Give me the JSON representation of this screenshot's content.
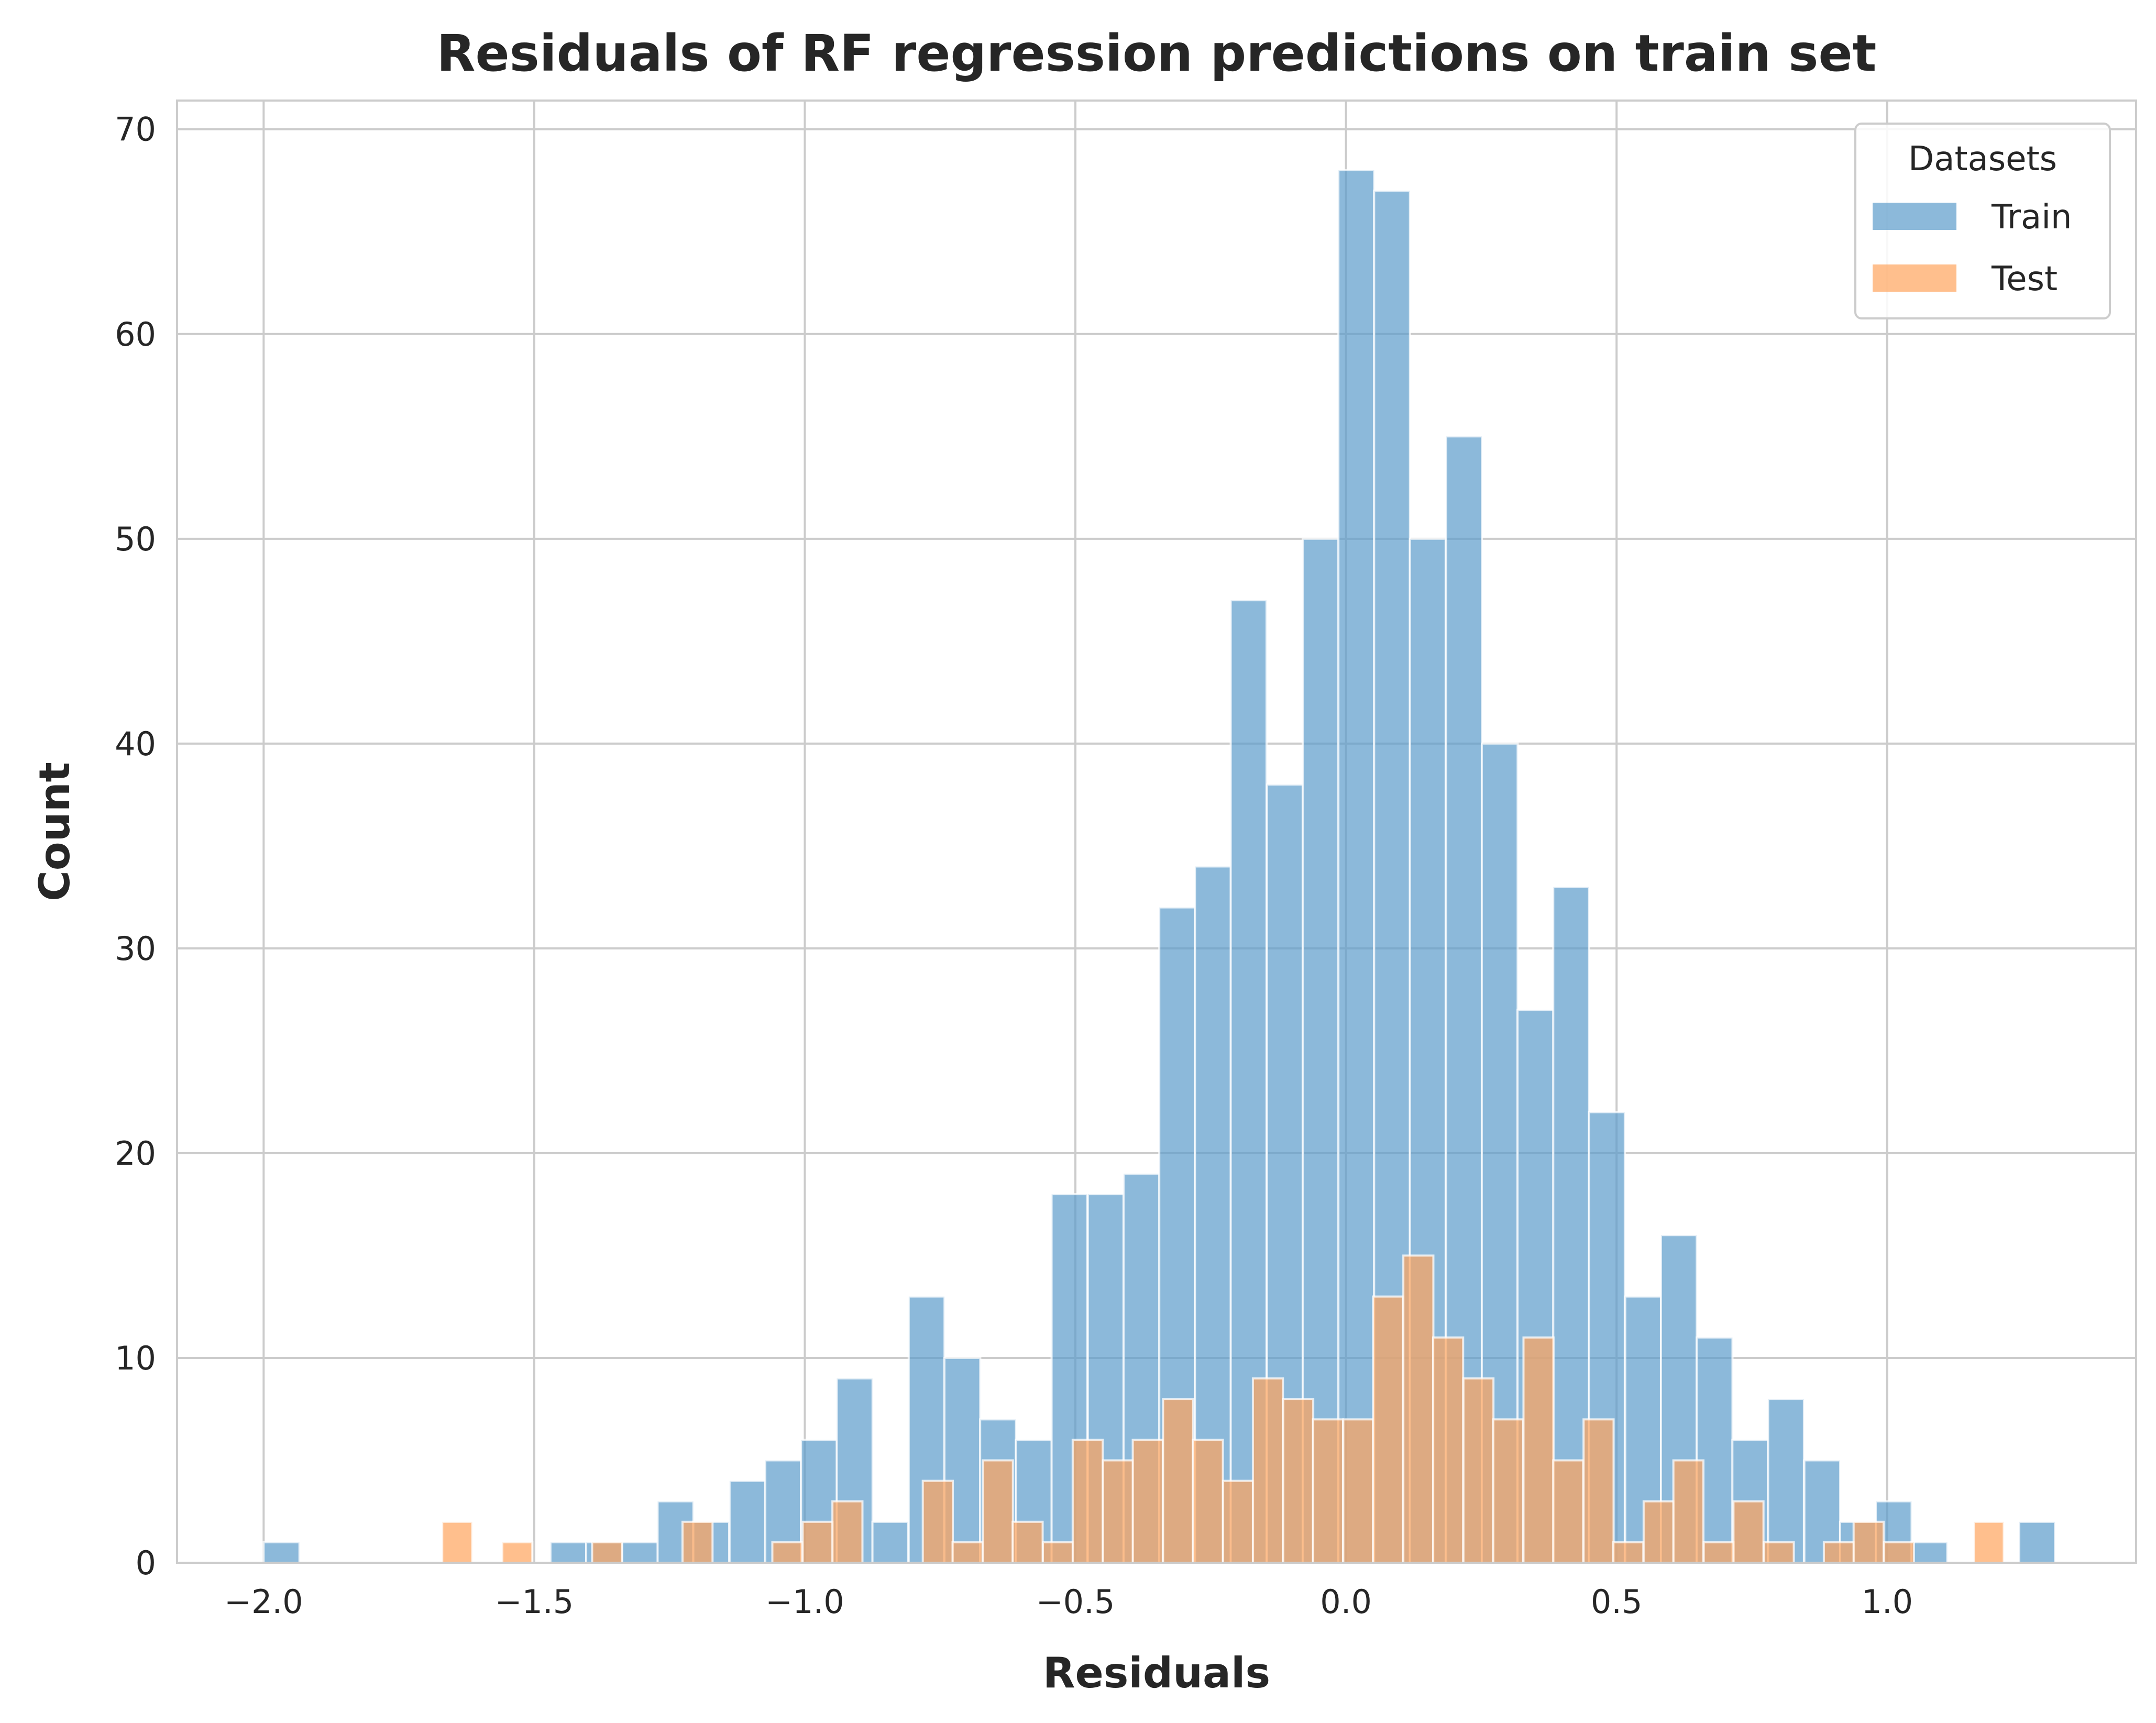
{
  "chart_data": {
    "type": "bar",
    "title": "Residuals of RF regression predictions on train set",
    "xlabel": "Residuals",
    "ylabel": "Count",
    "xlim": [
      -2.16,
      1.46
    ],
    "ylim": [
      0,
      71.4
    ],
    "x_ticks": [
      -2.0,
      -1.5,
      -1.0,
      -0.5,
      0.0,
      0.5,
      1.0
    ],
    "x_tick_labels": [
      "−2.0",
      "−1.5",
      "−1.0",
      "−0.5",
      "0.0",
      "0.5",
      "1.0"
    ],
    "y_ticks": [
      0,
      10,
      20,
      30,
      40,
      50,
      60,
      70
    ],
    "y_tick_labels": [
      "0",
      "10",
      "20",
      "30",
      "40",
      "50",
      "60",
      "70"
    ],
    "grid": true,
    "legend": {
      "title": "Datasets",
      "placement": "top-right"
    },
    "series": [
      {
        "name": "Train",
        "color": "#5b9bcb",
        "bin_width": 0.0662,
        "bins": [
          {
            "x0": -2.0,
            "count": 1
          },
          {
            "x0": -1.934,
            "count": 0
          },
          {
            "x0": -1.868,
            "count": 0
          },
          {
            "x0": -1.801,
            "count": 0
          },
          {
            "x0": -1.735,
            "count": 0
          },
          {
            "x0": -1.669,
            "count": 0
          },
          {
            "x0": -1.603,
            "count": 0
          },
          {
            "x0": -1.537,
            "count": 0
          },
          {
            "x0": -1.47,
            "count": 1
          },
          {
            "x0": -1.404,
            "count": 1
          },
          {
            "x0": -1.338,
            "count": 1
          },
          {
            "x0": -1.272,
            "count": 3
          },
          {
            "x0": -1.206,
            "count": 2
          },
          {
            "x0": -1.139,
            "count": 4
          },
          {
            "x0": -1.073,
            "count": 5
          },
          {
            "x0": -1.007,
            "count": 6
          },
          {
            "x0": -0.941,
            "count": 9
          },
          {
            "x0": -0.875,
            "count": 2
          },
          {
            "x0": -0.808,
            "count": 13
          },
          {
            "x0": -0.742,
            "count": 10
          },
          {
            "x0": -0.676,
            "count": 7
          },
          {
            "x0": -0.61,
            "count": 6
          },
          {
            "x0": -0.544,
            "count": 18
          },
          {
            "x0": -0.477,
            "count": 18
          },
          {
            "x0": -0.411,
            "count": 19
          },
          {
            "x0": -0.345,
            "count": 32
          },
          {
            "x0": -0.279,
            "count": 34
          },
          {
            "x0": -0.213,
            "count": 47
          },
          {
            "x0": -0.146,
            "count": 38
          },
          {
            "x0": -0.08,
            "count": 50
          },
          {
            "x0": -0.014,
            "count": 68
          },
          {
            "x0": 0.052,
            "count": 67
          },
          {
            "x0": 0.118,
            "count": 50
          },
          {
            "x0": 0.185,
            "count": 55
          },
          {
            "x0": 0.251,
            "count": 40
          },
          {
            "x0": 0.317,
            "count": 27
          },
          {
            "x0": 0.383,
            "count": 33
          },
          {
            "x0": 0.449,
            "count": 22
          },
          {
            "x0": 0.516,
            "count": 13
          },
          {
            "x0": 0.582,
            "count": 16
          },
          {
            "x0": 0.648,
            "count": 11
          },
          {
            "x0": 0.714,
            "count": 6
          },
          {
            "x0": 0.78,
            "count": 8
          },
          {
            "x0": 0.847,
            "count": 5
          },
          {
            "x0": 0.913,
            "count": 2
          },
          {
            "x0": 0.979,
            "count": 3
          },
          {
            "x0": 1.045,
            "count": 1
          },
          {
            "x0": 1.111,
            "count": 0
          },
          {
            "x0": 1.178,
            "count": 0
          },
          {
            "x0": 1.244,
            "count": 2
          }
        ]
      },
      {
        "name": "Test",
        "color": "#ffa45c",
        "bin_width": 0.0555,
        "bins": [
          {
            "x0": -1.67,
            "count": 2
          },
          {
            "x0": -1.615,
            "count": 0
          },
          {
            "x0": -1.559,
            "count": 1
          },
          {
            "x0": -1.504,
            "count": 0
          },
          {
            "x0": -1.448,
            "count": 0
          },
          {
            "x0": -1.393,
            "count": 1
          },
          {
            "x0": -1.337,
            "count": 0
          },
          {
            "x0": -1.282,
            "count": 0
          },
          {
            "x0": -1.226,
            "count": 2
          },
          {
            "x0": -1.171,
            "count": 0
          },
          {
            "x0": -1.115,
            "count": 0
          },
          {
            "x0": -1.06,
            "count": 1
          },
          {
            "x0": -1.004,
            "count": 2
          },
          {
            "x0": -0.949,
            "count": 3
          },
          {
            "x0": -0.893,
            "count": 0
          },
          {
            "x0": -0.838,
            "count": 0
          },
          {
            "x0": -0.782,
            "count": 4
          },
          {
            "x0": -0.727,
            "count": 1
          },
          {
            "x0": -0.671,
            "count": 5
          },
          {
            "x0": -0.616,
            "count": 2
          },
          {
            "x0": -0.56,
            "count": 1
          },
          {
            "x0": -0.505,
            "count": 6
          },
          {
            "x0": -0.449,
            "count": 5
          },
          {
            "x0": -0.394,
            "count": 6
          },
          {
            "x0": -0.338,
            "count": 8
          },
          {
            "x0": -0.283,
            "count": 6
          },
          {
            "x0": -0.227,
            "count": 4
          },
          {
            "x0": -0.172,
            "count": 9
          },
          {
            "x0": -0.116,
            "count": 8
          },
          {
            "x0": -0.061,
            "count": 7
          },
          {
            "x0": -0.005,
            "count": 7
          },
          {
            "x0": 0.05,
            "count": 13
          },
          {
            "x0": 0.106,
            "count": 15
          },
          {
            "x0": 0.161,
            "count": 11
          },
          {
            "x0": 0.217,
            "count": 9
          },
          {
            "x0": 0.272,
            "count": 7
          },
          {
            "x0": 0.328,
            "count": 11
          },
          {
            "x0": 0.383,
            "count": 5
          },
          {
            "x0": 0.439,
            "count": 7
          },
          {
            "x0": 0.494,
            "count": 1
          },
          {
            "x0": 0.55,
            "count": 3
          },
          {
            "x0": 0.605,
            "count": 5
          },
          {
            "x0": 0.661,
            "count": 1
          },
          {
            "x0": 0.716,
            "count": 3
          },
          {
            "x0": 0.772,
            "count": 1
          },
          {
            "x0": 0.827,
            "count": 0
          },
          {
            "x0": 0.883,
            "count": 1
          },
          {
            "x0": 0.938,
            "count": 2
          },
          {
            "x0": 0.994,
            "count": 1
          },
          {
            "x0": 1.049,
            "count": 0
          },
          {
            "x0": 1.105,
            "count": 0
          },
          {
            "x0": 1.16,
            "count": 2
          }
        ]
      }
    ]
  }
}
